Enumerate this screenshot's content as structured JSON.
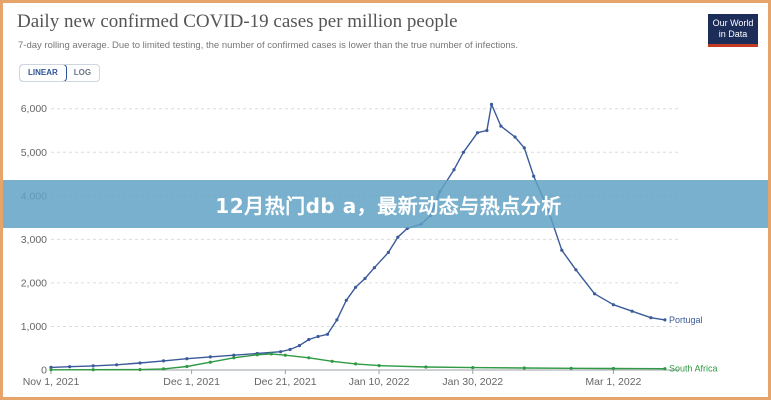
{
  "title": "Daily new confirmed COVID-19 cases per million people",
  "subtitle": "7-day rolling average. Due to limited testing, the number of confirmed cases is lower than the true number of infections.",
  "logo": {
    "line1": "Our World",
    "line2": "in Data"
  },
  "scale_toggle": {
    "linear_label": "LINEAR",
    "log_label": "LOG",
    "selected": "LINEAR"
  },
  "banner": {
    "text": "12月热门db a，最新动态与热点分析"
  },
  "colors": {
    "portugal": "#3b5a9a",
    "south_africa": "#2e9a43",
    "frame": "#e6a36a",
    "banner": "#60a2c4"
  },
  "chart_data": {
    "type": "line",
    "title": "Daily new confirmed COVID-19 cases per million people",
    "subtitle": "7-day rolling average. Due to limited testing, the number of confirmed cases is lower than the true number of infections.",
    "xlabel": "",
    "ylabel": "",
    "x_range": [
      "2021-11-01",
      "2022-03-15"
    ],
    "ylim": [
      0,
      6200
    ],
    "y_ticks": [
      0,
      1000,
      2000,
      3000,
      4000,
      5000,
      6000
    ],
    "y_tick_labels": [
      "0",
      "1,000",
      "2,000",
      "3,000",
      "4,000",
      "5,000",
      "6,000"
    ],
    "x_ticks": [
      {
        "date": "2021-11-01",
        "label": "Nov 1, 2021"
      },
      {
        "date": "2021-12-01",
        "label": "Dec 1, 2021"
      },
      {
        "date": "2021-12-21",
        "label": "Dec 21, 2021"
      },
      {
        "date": "2022-01-10",
        "label": "Jan 10, 2022"
      },
      {
        "date": "2022-01-30",
        "label": "Jan 30, 2022"
      },
      {
        "date": "2022-03-01",
        "label": "Mar 1, 2022"
      }
    ],
    "grid": "horizontal",
    "series": [
      {
        "name": "Portugal",
        "points": [
          [
            "2021-11-01",
            60
          ],
          [
            "2021-11-05",
            75
          ],
          [
            "2021-11-10",
            95
          ],
          [
            "2021-11-15",
            120
          ],
          [
            "2021-11-20",
            160
          ],
          [
            "2021-11-25",
            210
          ],
          [
            "2021-11-30",
            260
          ],
          [
            "2021-12-05",
            300
          ],
          [
            "2021-12-10",
            340
          ],
          [
            "2021-12-15",
            380
          ],
          [
            "2021-12-20",
            420
          ],
          [
            "2021-12-22",
            470
          ],
          [
            "2021-12-24",
            560
          ],
          [
            "2021-12-26",
            700
          ],
          [
            "2021-12-28",
            770
          ],
          [
            "2021-12-30",
            820
          ],
          [
            "2022-01-01",
            1150
          ],
          [
            "2022-01-03",
            1600
          ],
          [
            "2022-01-05",
            1900
          ],
          [
            "2022-01-07",
            2100
          ],
          [
            "2022-01-09",
            2350
          ],
          [
            "2022-01-12",
            2700
          ],
          [
            "2022-01-14",
            3050
          ],
          [
            "2022-01-16",
            3250
          ],
          [
            "2022-01-19",
            3350
          ],
          [
            "2022-01-21",
            3550
          ],
          [
            "2022-01-23",
            4100
          ],
          [
            "2022-01-26",
            4600
          ],
          [
            "2022-01-28",
            5000
          ],
          [
            "2022-01-31",
            5450
          ],
          [
            "2022-02-02",
            5500
          ],
          [
            "2022-02-03",
            6100
          ],
          [
            "2022-02-05",
            5600
          ],
          [
            "2022-02-08",
            5350
          ],
          [
            "2022-02-10",
            5100
          ],
          [
            "2022-02-12",
            4450
          ],
          [
            "2022-02-15",
            3700
          ],
          [
            "2022-02-18",
            2750
          ],
          [
            "2022-02-21",
            2300
          ],
          [
            "2022-02-25",
            1750
          ],
          [
            "2022-03-01",
            1500
          ],
          [
            "2022-03-05",
            1350
          ],
          [
            "2022-03-09",
            1200
          ],
          [
            "2022-03-12",
            1150
          ]
        ]
      },
      {
        "name": "South Africa",
        "points": [
          [
            "2021-11-01",
            5
          ],
          [
            "2021-11-10",
            6
          ],
          [
            "2021-11-20",
            10
          ],
          [
            "2021-11-25",
            25
          ],
          [
            "2021-11-30",
            80
          ],
          [
            "2021-12-05",
            180
          ],
          [
            "2021-12-10",
            280
          ],
          [
            "2021-12-15",
            350
          ],
          [
            "2021-12-18",
            370
          ],
          [
            "2021-12-21",
            340
          ],
          [
            "2021-12-26",
            280
          ],
          [
            "2021-12-31",
            200
          ],
          [
            "2022-01-05",
            140
          ],
          [
            "2022-01-10",
            100
          ],
          [
            "2022-01-20",
            70
          ],
          [
            "2022-01-30",
            55
          ],
          [
            "2022-02-10",
            45
          ],
          [
            "2022-02-20",
            40
          ],
          [
            "2022-03-01",
            35
          ],
          [
            "2022-03-12",
            30
          ]
        ]
      }
    ]
  }
}
